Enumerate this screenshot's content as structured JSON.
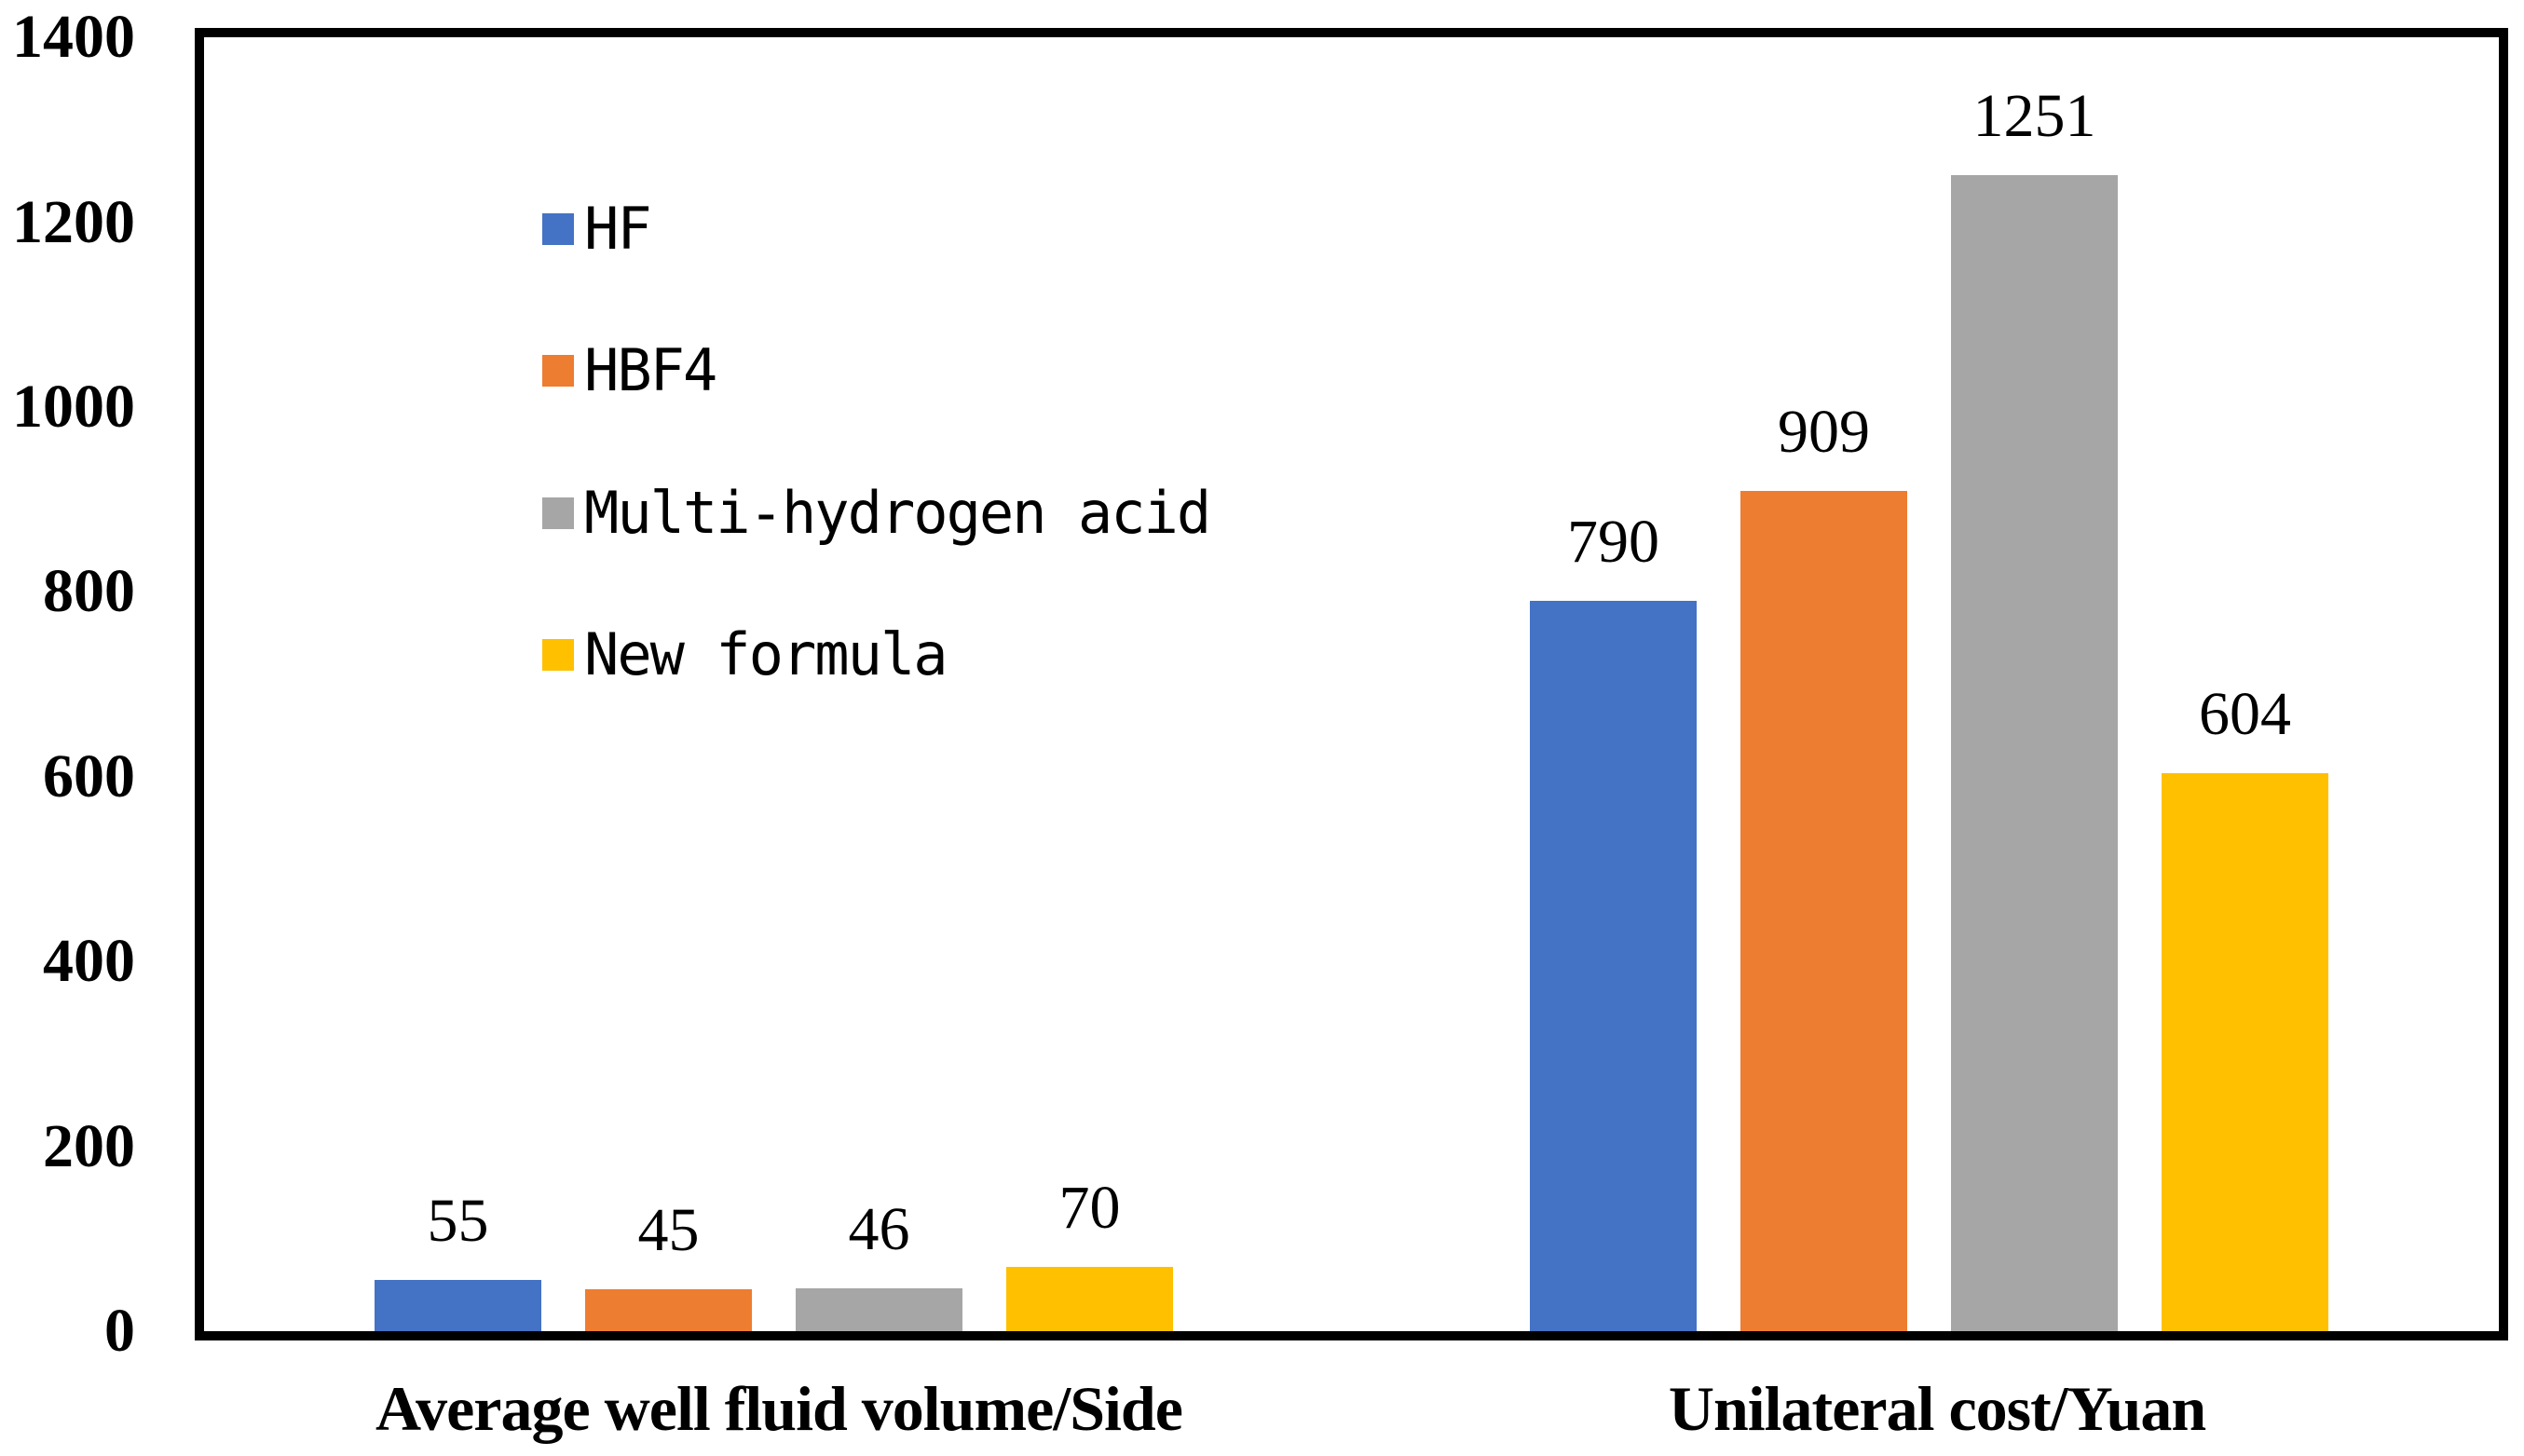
{
  "chart_data": {
    "type": "bar",
    "title": "",
    "xlabel": "",
    "ylabel": "",
    "categories": [
      "Average well fluid volume/Side",
      "Unilateral cost/Yuan"
    ],
    "series": [
      {
        "name": "HF",
        "color": "#4472C4",
        "values": [
          55,
          790
        ]
      },
      {
        "name": "HBF4",
        "color": "#ED7D31",
        "values": [
          45,
          909
        ]
      },
      {
        "name": "Multi-hydrogen acid",
        "color": "#A6A6A6",
        "values": [
          46,
          1251
        ]
      },
      {
        "name": "New formula",
        "color": "#FFC000",
        "values": [
          70,
          604
        ]
      }
    ],
    "data_labels": [
      [
        "55",
        "45",
        "46",
        "70"
      ],
      [
        "790",
        "909",
        "1251",
        "604"
      ]
    ],
    "ylim": [
      0,
      1400
    ],
    "y_ticks": [
      "0",
      "200",
      "400",
      "600",
      "800",
      "1000",
      "1200",
      "1400"
    ],
    "y_tick_values": [
      0,
      200,
      400,
      600,
      800,
      1000,
      1200,
      1400
    ],
    "grid": false,
    "legend_position": "upper-left-inside"
  },
  "colors": {
    "axis": "#000000",
    "text": "#000000",
    "background": "#FFFFFF",
    "series_blue": "#4472C4",
    "series_orange": "#ED7D31",
    "series_gray": "#A6A6A6",
    "series_yellow": "#FFC000"
  }
}
